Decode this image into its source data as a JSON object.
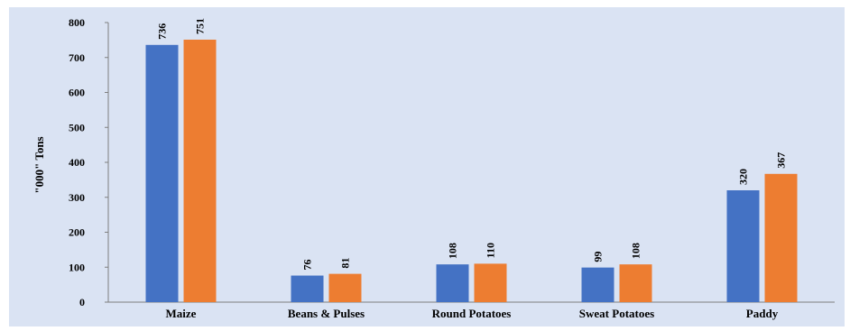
{
  "caption_fragment": "",
  "chart_data": {
    "type": "bar",
    "categories": [
      "Maize",
      "Beans & Pulses",
      "Round Potatoes",
      "Sweat Potatoes",
      "Paddy"
    ],
    "series": [
      {
        "values": [
          736,
          76,
          108,
          99,
          320
        ],
        "color": "#4472c4"
      },
      {
        "values": [
          751,
          81,
          110,
          108,
          367
        ],
        "color": "#ed7d31"
      }
    ],
    "ylabel": "\"000\" Tons",
    "ylim": [
      0,
      800
    ],
    "yticks": [
      0,
      100,
      200,
      300,
      400,
      500,
      600,
      700,
      800
    ],
    "data_labels": true,
    "grid": false,
    "legend": "none",
    "background_color": "#dae3f3"
  }
}
